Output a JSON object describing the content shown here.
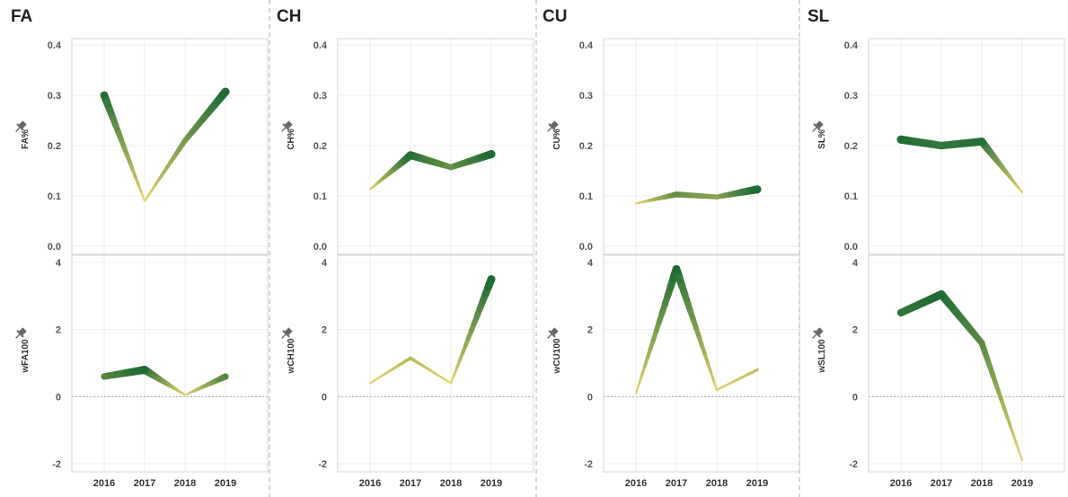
{
  "colors": {
    "low": "#e6d36a",
    "high": "#1e6b34",
    "divider": "#b8cce0",
    "grid": "#eeeeee",
    "frame": "#d6d6d6",
    "zero_line": "#aaaaaa",
    "pin_icon": "#666666"
  },
  "icons": {
    "axis_pin": "pin-icon"
  },
  "chart_data": [
    {
      "type": "line",
      "pitch": "FA",
      "x": [
        "2016",
        "2017",
        "2018",
        "2019"
      ],
      "top": {
        "ylabel": "FA%",
        "ylim": [
          0,
          0.4
        ],
        "yticks": [
          "0.4",
          "0.3",
          "0.2",
          "0.1",
          "0.0"
        ],
        "values": [
          0.3,
          0.09,
          0.21,
          0.307
        ]
      },
      "bottom": {
        "ylabel": "wFA100",
        "ylim": [
          -2,
          4
        ],
        "yticks": [
          "4",
          "2",
          "0",
          "-2"
        ],
        "values": [
          0.6,
          0.8,
          0.05,
          0.6
        ]
      }
    },
    {
      "type": "line",
      "pitch": "CH",
      "x": [
        "2016",
        "2017",
        "2018",
        "2019"
      ],
      "top": {
        "ylabel": "CH%",
        "ylim": [
          0,
          0.4
        ],
        "yticks": [
          "0.4",
          "0.3",
          "0.2",
          "0.1",
          "0.0"
        ],
        "values": [
          0.113,
          0.181,
          0.157,
          0.183
        ]
      },
      "bottom": {
        "ylabel": "wCH100",
        "ylim": [
          -2,
          4
        ],
        "yticks": [
          "4",
          "2",
          "0",
          "-2"
        ],
        "values": [
          0.4,
          1.15,
          0.4,
          3.5
        ]
      }
    },
    {
      "type": "line",
      "pitch": "CU",
      "x": [
        "2016",
        "2017",
        "2018",
        "2019"
      ],
      "top": {
        "ylabel": "CU%",
        "ylim": [
          0,
          0.4
        ],
        "yticks": [
          "0.4",
          "0.3",
          "0.2",
          "0.1",
          "0.0"
        ],
        "values": [
          0.085,
          0.103,
          0.098,
          0.113
        ]
      },
      "bottom": {
        "ylabel": "wCU100",
        "ylim": [
          -2,
          4
        ],
        "yticks": [
          "4",
          "2",
          "0",
          "-2"
        ],
        "values": [
          0.1,
          3.8,
          0.2,
          0.8
        ]
      }
    },
    {
      "type": "line",
      "pitch": "SL",
      "x": [
        "2016",
        "2017",
        "2018",
        "2019"
      ],
      "top": {
        "ylabel": "SL%",
        "ylim": [
          0,
          0.4
        ],
        "yticks": [
          "0.4",
          "0.3",
          "0.2",
          "0.1",
          "0.0"
        ],
        "values": [
          0.212,
          0.2,
          0.208,
          0.107
        ]
      },
      "bottom": {
        "ylabel": "wSL100",
        "ylim": [
          -2,
          4
        ],
        "yticks": [
          "4",
          "2",
          "0",
          "-2"
        ],
        "values": [
          2.5,
          3.05,
          1.6,
          -1.9
        ]
      }
    }
  ]
}
